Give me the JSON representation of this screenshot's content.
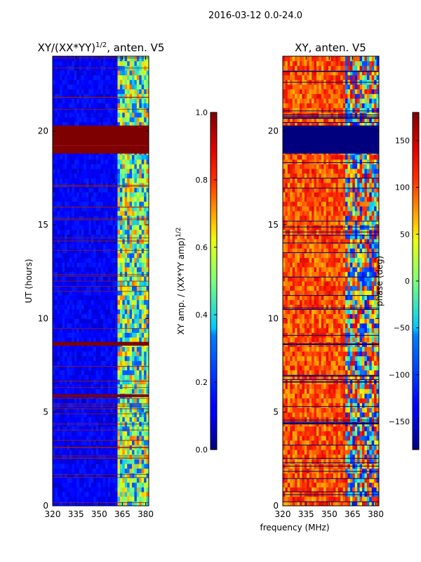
{
  "figure": {
    "suptitle": "2016-03-12 0.0-24.0",
    "shared_xlabel": "frequency (MHz)"
  },
  "colors": {
    "background": "#ffffff",
    "flag_red": "#7f0000",
    "flag_blue": "#00007f",
    "axis": "#000000"
  },
  "chart_data": [
    {
      "type": "heatmap",
      "title_prefix": "XY/(XX*YY)",
      "title_sup": "1/2",
      "title_suffix": ", anten. V5",
      "ylabel": "UT (hours)",
      "xlim": [
        320,
        382
      ],
      "ylim": [
        0,
        24
      ],
      "xticks": [
        320,
        335,
        350,
        365,
        380
      ],
      "yticks": [
        0,
        5,
        10,
        15,
        20
      ],
      "colormap": "jet",
      "flagged_hour_bands": [
        [
          18.8,
          20.3
        ],
        [
          8.55,
          8.75
        ],
        [
          5.8,
          5.95
        ]
      ],
      "active_freq_range_mhz": [
        362,
        382
      ],
      "colorbar": {
        "label_main": "XY amp. / (XX*YY amp)",
        "label_sup": "1/2",
        "range": [
          0.0,
          1.0
        ],
        "ticks": [
          "0.0",
          "0.2",
          "0.4",
          "0.6",
          "0.8",
          "1.0"
        ]
      }
    },
    {
      "type": "heatmap",
      "title": "XY, anten. V5",
      "xlim": [
        320,
        382
      ],
      "ylim": [
        0,
        24
      ],
      "xticks": [
        320,
        335,
        350,
        365,
        380
      ],
      "yticks": [
        0,
        5,
        10,
        15,
        20
      ],
      "colormap": "jet",
      "flagged_hour_bands": [
        [
          18.8,
          20.3
        ]
      ],
      "colorbar": {
        "label": "phase (deg)",
        "range": [
          -180,
          180
        ],
        "ticks": [
          "150",
          "100",
          "50",
          "0",
          "−50",
          "−100",
          "−150"
        ]
      }
    }
  ]
}
